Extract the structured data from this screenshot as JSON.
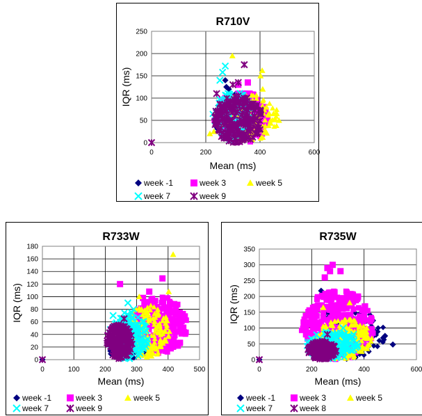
{
  "chart_data": [
    {
      "type": "scatter",
      "title": "R710V",
      "xlabel": "Mean (ms)",
      "ylabel": "IQR (ms)",
      "xlim": [
        0,
        600
      ],
      "ylim": [
        0,
        250
      ],
      "xticks": [
        0,
        200,
        400,
        600
      ],
      "yticks": [
        0,
        50,
        100,
        150,
        200,
        250
      ],
      "grid": true,
      "legend": "bottom",
      "series": [
        {
          "name": "week -1",
          "marker": "diamond",
          "color": "#000080",
          "cloud": {
            "cx": 320,
            "cy": 55,
            "rx": 90,
            "ry": 55,
            "n": 150
          },
          "points": [
            [
              272,
              140
            ],
            [
              276,
              125
            ],
            [
              285,
              120
            ]
          ]
        },
        {
          "name": "week 3",
          "marker": "square",
          "color": "#ff00ff",
          "cloud": {
            "cx": 330,
            "cy": 55,
            "rx": 100,
            "ry": 60,
            "n": 160
          },
          "points": [
            [
              355,
              135
            ],
            [
              320,
              130
            ]
          ]
        },
        {
          "name": "week 5",
          "marker": "triangle",
          "color": "#ffff00",
          "cloud": {
            "cx": 350,
            "cy": 55,
            "rx": 120,
            "ry": 55,
            "n": 150
          },
          "points": [
            [
              298,
              195
            ],
            [
              408,
              162
            ],
            [
              402,
              150
            ],
            [
              450,
              65
            ],
            [
              470,
              50
            ],
            [
              215,
              20
            ],
            [
              230,
              25
            ],
            [
              410,
              120
            ]
          ]
        },
        {
          "name": "week 7",
          "marker": "x",
          "color": "#00ffff",
          "cloud": {
            "cx": 300,
            "cy": 60,
            "rx": 75,
            "ry": 55,
            "n": 120
          },
          "points": [
            [
              272,
              172
            ],
            [
              262,
              158
            ],
            [
              252,
              140
            ],
            [
              282,
              110
            ]
          ]
        },
        {
          "name": "week 9",
          "marker": "star",
          "color": "#800080",
          "cloud": {
            "cx": 320,
            "cy": 52,
            "rx": 90,
            "ry": 55,
            "n": 220
          },
          "points": [
            [
              342,
              175
            ],
            [
              320,
              135
            ],
            [
              0,
              0
            ],
            [
              240,
              110
            ],
            [
              300,
              130
            ]
          ]
        }
      ]
    },
    {
      "type": "scatter",
      "title": "R733W",
      "xlabel": "Mean (ms)",
      "ylabel": "IQR (ms)",
      "xlim": [
        0,
        500
      ],
      "ylim": [
        0,
        180
      ],
      "xticks": [
        0,
        100,
        200,
        300,
        400,
        500
      ],
      "yticks": [
        0,
        20,
        40,
        60,
        80,
        100,
        120,
        140,
        160,
        180
      ],
      "grid": true,
      "legend": "bottom",
      "series": [
        {
          "name": "week -1",
          "marker": "diamond",
          "color": "#000080",
          "cloud": {
            "cx": 270,
            "cy": 15,
            "rx": 60,
            "ry": 15,
            "n": 80
          },
          "points": [
            [
              0,
              0
            ]
          ]
        },
        {
          "name": "week 3",
          "marker": "square",
          "color": "#ff00ff",
          "cloud": {
            "cx": 375,
            "cy": 55,
            "rx": 85,
            "ry": 45,
            "n": 260
          },
          "points": [
            [
              247,
              120
            ],
            [
              382,
              129
            ],
            [
              340,
              108
            ],
            [
              320,
              98
            ]
          ]
        },
        {
          "name": "week 5",
          "marker": "triangle",
          "color": "#ffff00",
          "cloud": {
            "cx": 330,
            "cy": 45,
            "rx": 75,
            "ry": 42,
            "n": 200
          },
          "points": [
            [
              416,
              167
            ],
            [
              402,
              108
            ],
            [
              308,
              100
            ]
          ]
        },
        {
          "name": "week 7",
          "marker": "x",
          "color": "#00ffff",
          "cloud": {
            "cx": 275,
            "cy": 38,
            "rx": 65,
            "ry": 38,
            "n": 170
          },
          "points": [
            [
              225,
              70
            ],
            [
              272,
              90
            ],
            [
              290,
              80
            ]
          ]
        },
        {
          "name": "week 9",
          "marker": "star",
          "color": "#800080",
          "cloud": {
            "cx": 245,
            "cy": 28,
            "rx": 42,
            "ry": 28,
            "n": 170
          },
          "points": [
            [
              0,
              0
            ],
            [
              260,
              65
            ]
          ]
        }
      ]
    },
    {
      "type": "scatter",
      "title": "R735W",
      "xlabel": "Mean (ms)",
      "ylabel": "IQR (ms)",
      "xlim": [
        0,
        600
      ],
      "ylim": [
        0,
        350
      ],
      "xticks": [
        0,
        200,
        400,
        600
      ],
      "yticks": [
        0,
        50,
        100,
        150,
        200,
        250,
        300,
        350
      ],
      "grid": true,
      "legend": "bottom",
      "series": [
        {
          "name": "week -1",
          "marker": "diamond",
          "color": "#000080",
          "cloud": {
            "cx": 330,
            "cy": 80,
            "rx": 150,
            "ry": 80,
            "n": 130
          },
          "points": [
            [
              236,
              218
            ],
            [
              400,
              120
            ],
            [
              480,
              75
            ],
            [
              510,
              48
            ],
            [
              0,
              0
            ]
          ]
        },
        {
          "name": "week 3",
          "marker": "square",
          "color": "#ff00ff",
          "cloud": {
            "cx": 300,
            "cy": 110,
            "rx": 140,
            "ry": 110,
            "n": 380
          },
          "points": [
            [
              260,
              290
            ],
            [
              270,
              280
            ],
            [
              280,
              300
            ],
            [
              310,
              280
            ],
            [
              250,
              260
            ]
          ]
        },
        {
          "name": "week 5",
          "marker": "triangle",
          "color": "#ffff00",
          "cloud": {
            "cx": 320,
            "cy": 65,
            "rx": 110,
            "ry": 65,
            "n": 220
          },
          "points": [
            [
              244,
              165
            ],
            [
              345,
              180
            ],
            [
              410,
              100
            ]
          ]
        },
        {
          "name": "week 7",
          "marker": "x",
          "color": "#00ffff",
          "cloud": {
            "cx": 280,
            "cy": 45,
            "rx": 100,
            "ry": 45,
            "n": 170
          },
          "points": [
            [
              320,
              100
            ],
            [
              360,
              80
            ]
          ]
        },
        {
          "name": "week 8",
          "marker": "star",
          "color": "#800080",
          "cloud": {
            "cx": 240,
            "cy": 30,
            "rx": 55,
            "ry": 30,
            "n": 170
          },
          "points": [
            [
              0,
              0
            ],
            [
              260,
              80
            ]
          ]
        }
      ]
    }
  ]
}
